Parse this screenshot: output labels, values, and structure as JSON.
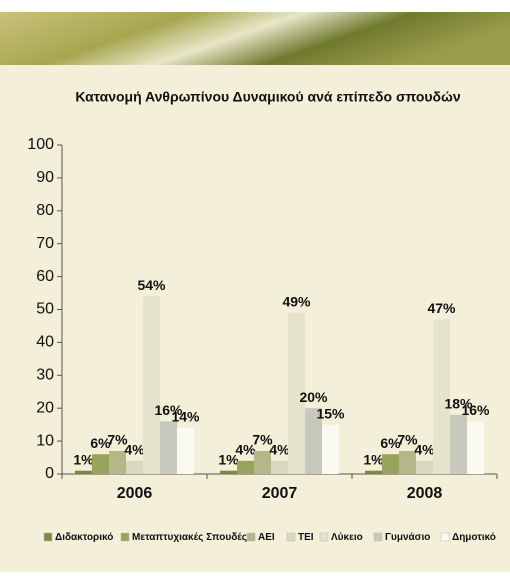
{
  "chart_data": {
    "type": "bar",
    "title": "Κατανομή Ανθρωπίνου Δυναμικού ανά επίπεδο σπουδών",
    "categories": [
      "2006",
      "2007",
      "2008"
    ],
    "series": [
      {
        "name": "Διδακτορικό",
        "color": "#7b8a3e",
        "values": [
          1,
          1,
          1
        ],
        "value_labels": [
          "1%",
          "1%",
          "1%"
        ]
      },
      {
        "name": "Μεταπτυχιακές Σπουδές",
        "color": "#98a35c",
        "values": [
          6,
          4,
          6
        ],
        "value_labels": [
          "6%",
          "4%",
          "6%"
        ]
      },
      {
        "name": "ΑΕΙ",
        "color": "#b3b78a",
        "values": [
          7,
          7,
          7
        ],
        "value_labels": [
          "7%",
          "7%",
          "7%"
        ]
      },
      {
        "name": "ΤΕΙ",
        "color": "#d7d8bc",
        "values": [
          4,
          4,
          4
        ],
        "value_labels": [
          "4%",
          "4%",
          "4%"
        ]
      },
      {
        "name": "Λύκειο",
        "color": "#e5e3cb",
        "values": [
          54,
          49,
          47
        ],
        "value_labels": [
          "54%",
          "49%",
          "47%"
        ]
      },
      {
        "name": "Γυμνάσιο",
        "color": "#c8c9bd",
        "values": [
          16,
          20,
          18
        ],
        "value_labels": [
          "16%",
          "20%",
          "18%"
        ]
      },
      {
        "name": "Δημοτικό",
        "color": "#fbfaf2",
        "values": [
          14,
          15,
          16
        ],
        "value_labels": [
          "14%",
          "15%",
          "16%"
        ]
      }
    ],
    "ylim": [
      0,
      100
    ],
    "yticks": [
      0,
      10,
      20,
      30,
      40,
      50,
      60,
      70,
      80,
      90,
      100
    ]
  }
}
